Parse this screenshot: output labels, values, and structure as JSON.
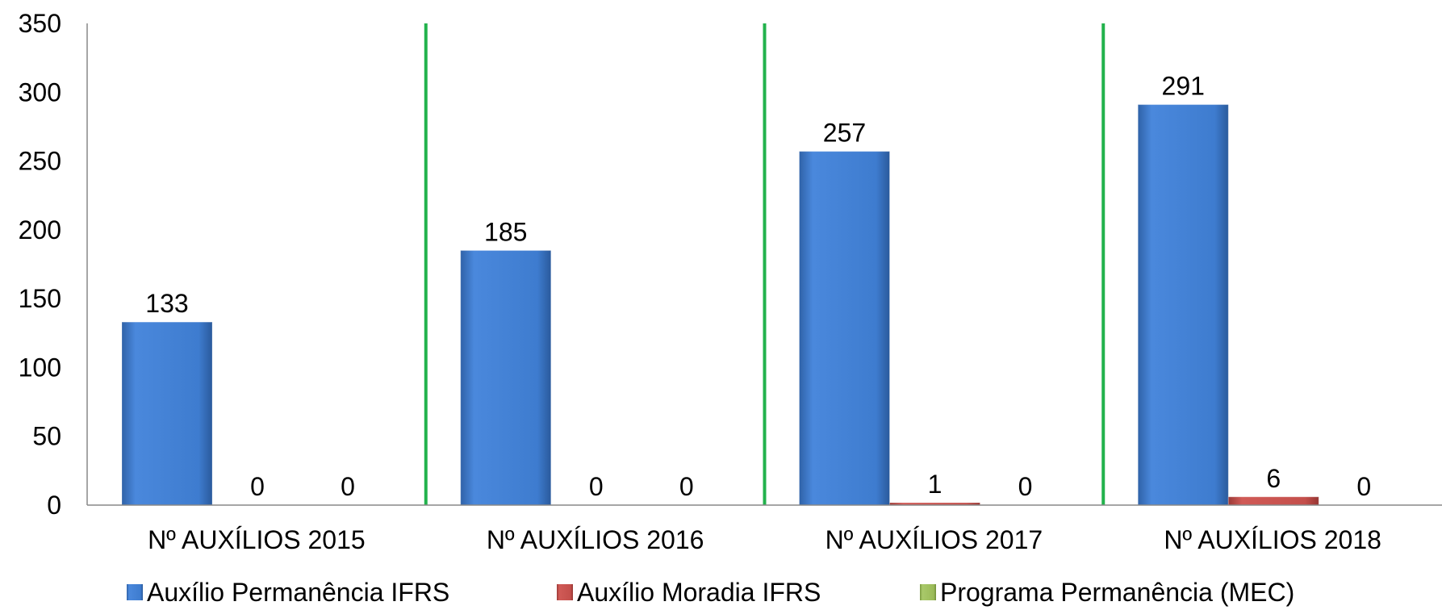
{
  "chart_data": {
    "type": "bar",
    "categories": [
      "Nº AUXÍLIOS 2015",
      "Nº AUXÍLIOS 2016",
      "Nº AUXÍLIOS 2017",
      "Nº AUXÍLIOS 2018"
    ],
    "series": [
      {
        "name": "Auxílio Permanência IFRS",
        "values": [
          133,
          185,
          257,
          291
        ],
        "color": "#3f7dd1"
      },
      {
        "name": "Auxílio Moradia IFRS",
        "values": [
          0,
          0,
          1,
          6
        ],
        "color": "#c0504d"
      },
      {
        "name": "Programa Permanência (MEC)",
        "values": [
          0,
          0,
          0,
          0
        ],
        "color": "#9bbb59"
      }
    ],
    "ylim": [
      0,
      350
    ],
    "yticks": [
      0,
      50,
      100,
      150,
      200,
      250,
      300,
      350
    ],
    "title": "",
    "xlabel": "",
    "ylabel": "",
    "grid": false,
    "data_labels": true,
    "legend_position": "bottom",
    "separator_color": "#22b24c"
  }
}
